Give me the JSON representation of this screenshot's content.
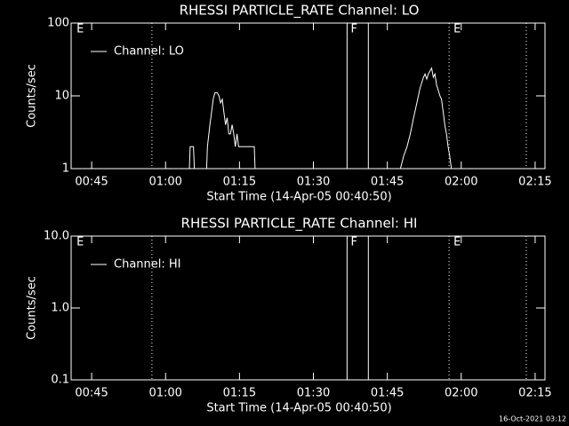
{
  "chart_data": [
    {
      "type": "line",
      "title": "RHESSI PARTICLE_RATE Channel: LO",
      "x_label": "Start Time (14-Apr-05 00:40:50)",
      "y_label": "Counts/sec",
      "xlim": [
        "00:40:50",
        "02:17:00"
      ],
      "xticks": [
        "00:45",
        "01:00",
        "01:15",
        "01:30",
        "01:45",
        "02:00",
        "02:15"
      ],
      "ylim": [
        1,
        100
      ],
      "yticks": [
        1,
        10,
        100
      ],
      "log_y": true,
      "legend": "upper left",
      "series": [
        {
          "name": "Channel: LO",
          "color": "#ffffff",
          "x": [
            "01:04:50",
            "01:05:00",
            "01:05:40",
            "01:05:50",
            "01:07:00",
            "01:08:20",
            "01:08:30",
            "01:09:00",
            "01:09:20",
            "01:09:40",
            "01:10:00",
            "01:10:30",
            "01:10:50",
            "01:11:10",
            "01:11:30",
            "01:11:50",
            "01:12:10",
            "01:12:30",
            "01:12:50",
            "01:13:10",
            "01:13:30",
            "01:13:50",
            "01:14:10",
            "01:14:30",
            "01:14:50",
            "01:18:00",
            "01:18:10",
            "01:30:00",
            "01:47:40",
            "01:48:20",
            "01:49:00",
            "01:49:40",
            "01:50:20",
            "01:51:00",
            "01:51:40",
            "01:52:20",
            "01:52:40",
            "01:53:00",
            "01:53:20",
            "01:53:40",
            "01:54:00",
            "01:54:20",
            "01:54:40",
            "01:55:00",
            "01:55:20",
            "01:55:40",
            "01:56:00",
            "01:56:20",
            "01:56:40",
            "01:57:00",
            "01:57:20",
            "01:57:40",
            "01:58:00"
          ],
          "values": [
            1,
            2,
            2,
            1,
            null,
            1,
            2,
            4,
            6,
            9,
            11,
            11,
            10,
            8,
            9,
            6,
            4,
            5,
            3,
            3,
            4,
            3,
            2,
            3,
            2,
            2,
            1,
            null,
            1,
            1.5,
            2,
            3,
            5,
            8,
            13,
            18,
            20,
            17,
            20,
            22,
            24,
            18,
            20,
            14,
            12,
            10,
            9,
            6,
            4,
            3,
            2,
            1.5,
            1
          ]
        }
      ],
      "vlines": [
        {
          "x": "00:57:14",
          "style": "dotted"
        },
        {
          "x": "01:36:50",
          "style": "solid"
        },
        {
          "x": "01:41:09",
          "style": "solid"
        },
        {
          "x": "01:57:32",
          "style": "dotted"
        },
        {
          "x": "02:13:12",
          "style": "dotted"
        }
      ],
      "flags": [
        {
          "x": "00:41:56",
          "label": "E"
        },
        {
          "x": "01:37:34",
          "label": "F"
        },
        {
          "x": "01:58:26",
          "label": "E"
        }
      ]
    },
    {
      "type": "line",
      "title": "RHESSI PARTICLE_RATE Channel: HI",
      "x_label": "Start Time (14-Apr-05 00:40:50)",
      "y_label": "Counts/sec",
      "xlim": [
        "00:40:50",
        "02:17:00"
      ],
      "xticks": [
        "00:45",
        "01:00",
        "01:15",
        "01:30",
        "01:45",
        "02:00",
        "02:15"
      ],
      "ylim": [
        0.1,
        10
      ],
      "yticks": [
        0.1,
        {
          "value": 1,
          "label": "1.0"
        },
        {
          "value": 10,
          "label": "10.0"
        }
      ],
      "log_y": true,
      "legend": "upper left",
      "series": [
        {
          "name": "Channel: HI",
          "color": "#ffffff",
          "x": [],
          "values": []
        }
      ],
      "vlines": [
        {
          "x": "00:57:14",
          "style": "dotted"
        },
        {
          "x": "01:36:50",
          "style": "solid"
        },
        {
          "x": "01:41:09",
          "style": "solid"
        },
        {
          "x": "01:57:32",
          "style": "dotted"
        },
        {
          "x": "02:13:12",
          "style": "dotted"
        }
      ],
      "flags": [
        {
          "x": "00:41:56",
          "label": "E"
        },
        {
          "x": "01:37:34",
          "label": "F"
        },
        {
          "x": "01:58:26",
          "label": "E"
        }
      ]
    }
  ],
  "footer": "16-Oct-2021 03:12"
}
